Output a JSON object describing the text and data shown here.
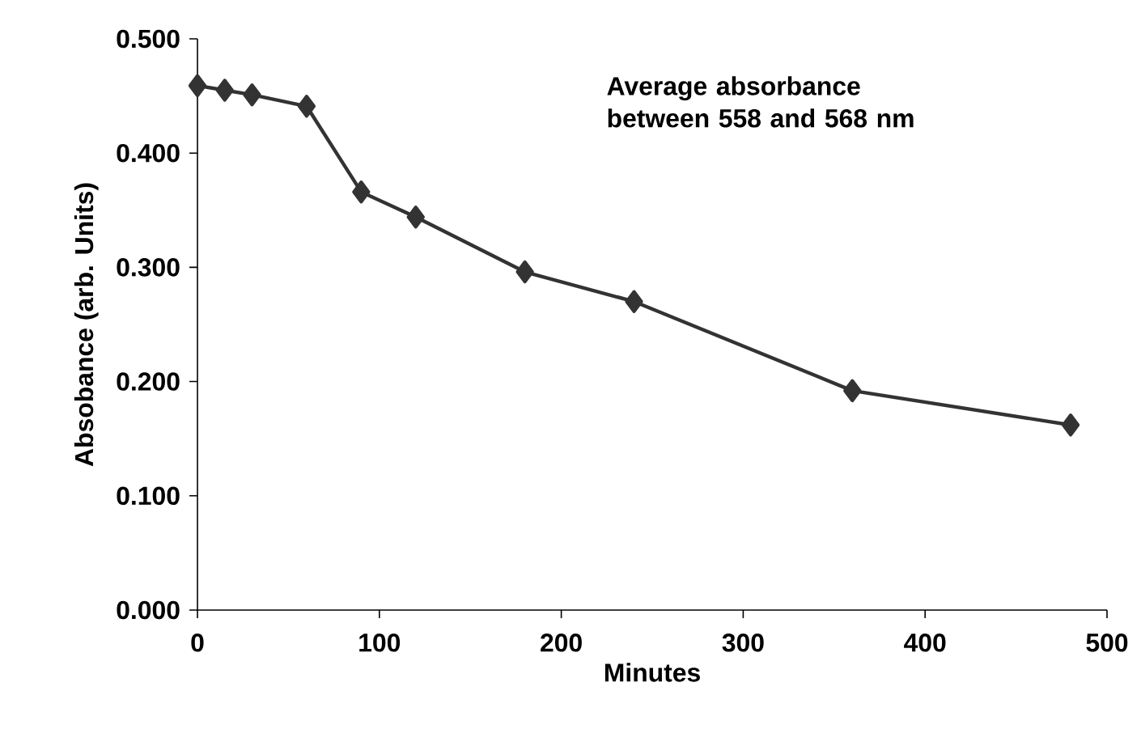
{
  "chart_data": {
    "type": "line",
    "xlabel": "Minutes",
    "ylabel": "Absobance (arb. Units)",
    "annotations": [
      "Average absorbance between 558 and 568 nm"
    ],
    "x": [
      0,
      15,
      30,
      60,
      90,
      120,
      180,
      240,
      360,
      480
    ],
    "series": [
      {
        "color": "#333333",
        "values": [
          0.459,
          0.455,
          0.451,
          0.441,
          0.366,
          0.344,
          0.296,
          0.27,
          0.192,
          0.162
        ]
      }
    ],
    "xlim": [
      0,
      500
    ],
    "xticks": [
      0,
      100,
      200,
      300,
      400,
      500
    ],
    "ylim": [
      0,
      0.5
    ],
    "yticks": [
      {
        "value": 0,
        "label": "0.000"
      },
      {
        "value": 0.1,
        "label": "0.100"
      },
      {
        "value": 0.2,
        "label": "0.200"
      },
      {
        "value": 0.3,
        "label": "0.300"
      },
      {
        "value": 0.4,
        "label": "0.400"
      },
      {
        "value": 0.5,
        "label": "0.500"
      }
    ],
    "marker": "diamond",
    "line_style": "solid",
    "grid": false
  }
}
